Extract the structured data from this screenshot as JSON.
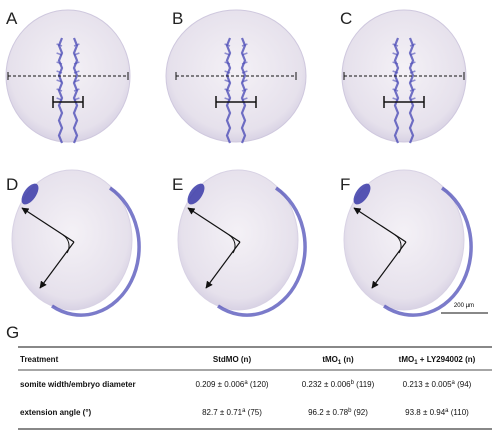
{
  "panels": {
    "labels": [
      "A",
      "B",
      "C",
      "D",
      "E",
      "F",
      "G"
    ]
  },
  "scale_bar": "200 µm",
  "table": {
    "header": [
      {
        "text": "Treatment"
      },
      {
        "text": "StdMO (n)"
      },
      {
        "text": "tMO",
        "sub": "1",
        "rest": " (n)"
      },
      {
        "text": "tMO",
        "sub": "1",
        "rest": " + LY294002 (n)"
      }
    ],
    "rows": [
      {
        "label": "somite width/embryo diameter",
        "cells": [
          {
            "value": "0.209 ± 0.006",
            "sup": "a",
            "n": " (120)"
          },
          {
            "value": "0.232 ± 0.006",
            "sup": "b",
            "n": " (119)"
          },
          {
            "value": "0.213 ± 0.005",
            "sup": "a",
            "n": " (94)"
          }
        ]
      },
      {
        "label": "extension angle (°)",
        "cells": [
          {
            "value": "82.7 ± 0.71",
            "sup": "a",
            "n": " (75)"
          },
          {
            "value": "96.2 ± 0.78",
            "sup": "b",
            "n": " (92)"
          },
          {
            "value": "93.8 ± 0.94",
            "sup": "a",
            "n": " (110)"
          }
        ]
      }
    ]
  }
}
